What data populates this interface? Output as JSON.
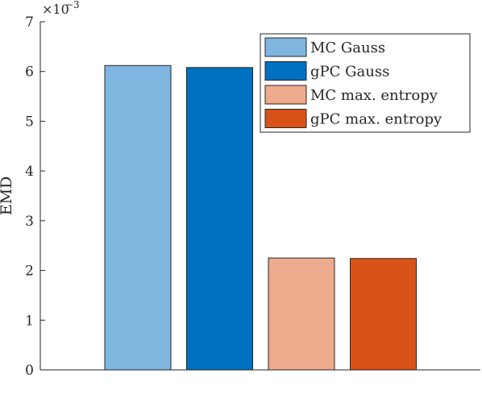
{
  "chart_data": {
    "type": "bar",
    "xlabel": "",
    "ylabel": "EMD",
    "ylim": [
      0,
      7
    ],
    "yticks": [
      "0",
      "1",
      "2",
      "3",
      "4",
      "5",
      "6",
      "7"
    ],
    "exponent_base": "×10",
    "exponent_power": "−3",
    "grid": false,
    "legend_position": "top-right",
    "series": [
      {
        "name": "MC Gauss",
        "value": 6.12,
        "color": "#7EB6DF"
      },
      {
        "name": "gPC Gauss",
        "value": 6.08,
        "color": "#0070C0"
      },
      {
        "name": "MC max. entropy",
        "value": 2.25,
        "color": "#EDAA8D"
      },
      {
        "name": "gPC max. entropy",
        "value": 2.24,
        "color": "#D95319"
      }
    ]
  }
}
